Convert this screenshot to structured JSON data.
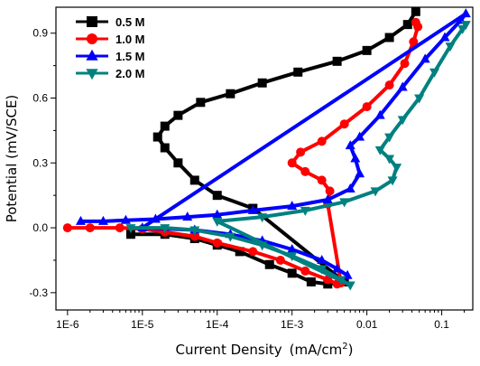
{
  "chart_data": {
    "type": "line",
    "title": "",
    "xlabel": "Current Density",
    "xlabel_unit": "(mA/cm",
    "xlabel_unit_sup": "2",
    "xlabel_unit_close": ")",
    "ylabel": "Potential  (mV/SCE)",
    "x_scale": "log",
    "xlim": [
      7e-07,
      0.26
    ],
    "ylim": [
      -0.38,
      1.02
    ],
    "xticks": [
      1e-06,
      1e-05,
      0.0001,
      0.001,
      0.01,
      0.1
    ],
    "xtick_labels": [
      "1E-6",
      "1E-5",
      "1E-4",
      "1E-3",
      "0.01",
      "0.1"
    ],
    "yticks": [
      -0.3,
      0.0,
      0.3,
      0.6,
      0.9
    ],
    "ytick_labels": [
      "-0.3",
      "0.0",
      "0.3",
      "0.6",
      "0.9"
    ],
    "grid": false,
    "legend_position": "top-left",
    "series": [
      {
        "name": "0.5 M",
        "color": "#000000",
        "marker": "square",
        "points": [
          [
            7e-06,
            -0.03
          ],
          [
            2e-05,
            -0.03
          ],
          [
            5e-05,
            -0.05
          ],
          [
            0.0001,
            -0.08
          ],
          [
            0.0002,
            -0.11
          ],
          [
            0.0005,
            -0.17
          ],
          [
            0.001,
            -0.21
          ],
          [
            0.0018,
            -0.25
          ],
          [
            0.003,
            -0.26
          ],
          [
            0.005,
            -0.25
          ],
          [
            0.0003,
            0.09
          ],
          [
            0.0001,
            0.15
          ],
          [
            5e-05,
            0.22
          ],
          [
            3e-05,
            0.3
          ],
          [
            2e-05,
            0.37
          ],
          [
            1.6e-05,
            0.42
          ],
          [
            2e-05,
            0.47
          ],
          [
            3e-05,
            0.52
          ],
          [
            6e-05,
            0.58
          ],
          [
            0.00015,
            0.62
          ],
          [
            0.0004,
            0.67
          ],
          [
            0.0012,
            0.72
          ],
          [
            0.004,
            0.77
          ],
          [
            0.01,
            0.82
          ],
          [
            0.02,
            0.88
          ],
          [
            0.035,
            0.94
          ],
          [
            0.045,
            1.0
          ]
        ]
      },
      {
        "name": "1.0 M",
        "color": "#ff0000",
        "marker": "circle",
        "points": [
          [
            1e-06,
            0.0
          ],
          [
            2e-06,
            0.0
          ],
          [
            5e-06,
            0.0
          ],
          [
            1e-05,
            -0.005
          ],
          [
            2e-05,
            -0.02
          ],
          [
            5e-05,
            -0.04
          ],
          [
            0.0001,
            -0.07
          ],
          [
            0.0003,
            -0.11
          ],
          [
            0.0007,
            -0.15
          ],
          [
            0.0015,
            -0.2
          ],
          [
            0.003,
            -0.24
          ],
          [
            0.004,
            -0.26
          ],
          [
            0.0045,
            -0.255
          ],
          [
            0.003,
            0.11
          ],
          [
            0.0032,
            0.17
          ],
          [
            0.0025,
            0.22
          ],
          [
            0.0015,
            0.26
          ],
          [
            0.001,
            0.3
          ],
          [
            0.0013,
            0.35
          ],
          [
            0.0025,
            0.4
          ],
          [
            0.005,
            0.48
          ],
          [
            0.01,
            0.56
          ],
          [
            0.02,
            0.66
          ],
          [
            0.032,
            0.76
          ],
          [
            0.042,
            0.86
          ],
          [
            0.048,
            0.93
          ],
          [
            0.045,
            0.95
          ]
        ]
      },
      {
        "name": "1.5 M",
        "color": "#0000ff",
        "marker": "triangle-up",
        "points": [
          [
            1.5e-06,
            0.03
          ],
          [
            3e-06,
            0.03
          ],
          [
            6e-06,
            0.035
          ],
          [
            1.5e-05,
            0.04
          ],
          [
            4e-05,
            0.05
          ],
          [
            0.0001,
            0.06
          ],
          [
            0.0003,
            0.08
          ],
          [
            0.001,
            0.1
          ],
          [
            0.003,
            0.13
          ],
          [
            0.006,
            0.18
          ],
          [
            0.008,
            0.25
          ],
          [
            0.007,
            0.32
          ],
          [
            0.006,
            0.38
          ],
          [
            0.008,
            0.42
          ],
          [
            0.015,
            0.52
          ],
          [
            0.03,
            0.65
          ],
          [
            0.06,
            0.78
          ],
          [
            0.11,
            0.88
          ],
          [
            0.18,
            0.96
          ],
          [
            0.21,
            0.99
          ],
          [
            1e-05,
            0.0
          ],
          [
            5e-05,
            -0.01
          ],
          [
            0.00015,
            -0.03
          ],
          [
            0.0004,
            -0.06
          ],
          [
            0.001,
            -0.1
          ],
          [
            0.0025,
            -0.15
          ],
          [
            0.004,
            -0.19
          ],
          [
            0.0055,
            -0.22
          ]
        ]
      },
      {
        "name": "2.0 M",
        "color": "#008080",
        "marker": "triangle-down",
        "points": [
          [
            7e-06,
            0.0
          ],
          [
            2e-05,
            0.0
          ],
          [
            5e-05,
            -0.01
          ],
          [
            0.00015,
            -0.04
          ],
          [
            0.0004,
            -0.08
          ],
          [
            0.001,
            -0.13
          ],
          [
            0.0025,
            -0.19
          ],
          [
            0.0045,
            -0.24
          ],
          [
            0.006,
            -0.265
          ],
          [
            0.0001,
            0.03
          ],
          [
            0.0004,
            0.05
          ],
          [
            0.0015,
            0.08
          ],
          [
            0.005,
            0.12
          ],
          [
            0.013,
            0.17
          ],
          [
            0.022,
            0.22
          ],
          [
            0.025,
            0.28
          ],
          [
            0.02,
            0.32
          ],
          [
            0.015,
            0.36
          ],
          [
            0.02,
            0.42
          ],
          [
            0.03,
            0.5
          ],
          [
            0.05,
            0.6
          ],
          [
            0.08,
            0.72
          ],
          [
            0.13,
            0.84
          ],
          [
            0.19,
            0.92
          ],
          [
            0.21,
            0.94
          ]
        ]
      }
    ]
  }
}
